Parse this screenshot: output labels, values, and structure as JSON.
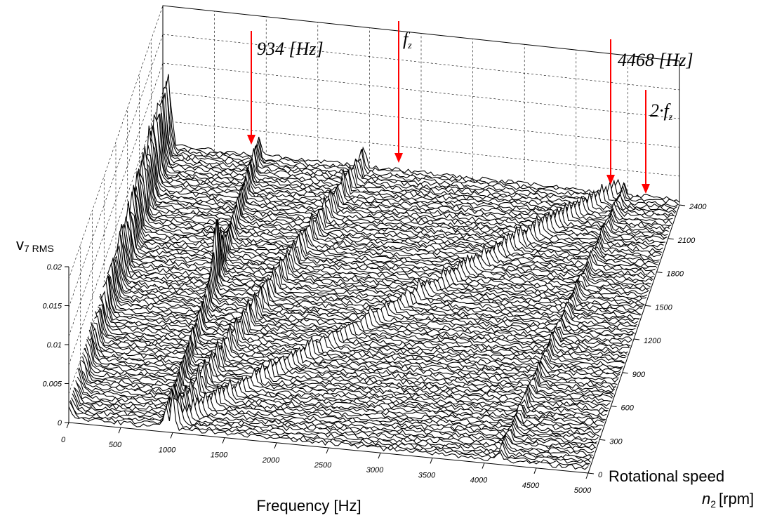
{
  "chart_data": {
    "type": "waterfall-3d",
    "title": "",
    "x_axis": {
      "label": "Frequency [Hz]",
      "range": [
        0,
        5000
      ],
      "ticks": [
        "0",
        "500",
        "1000",
        "1500",
        "2000",
        "2500",
        "3000",
        "3500",
        "4000",
        "4500",
        "5000"
      ]
    },
    "y_axis": {
      "label_line1": "Rotational speed",
      "label_line2_var": "n",
      "label_line2_sub": "2",
      "label_line2_unit": "[rpm]",
      "range": [
        0,
        2400
      ],
      "ticks": [
        "0",
        "300",
        "600",
        "900",
        "1200",
        "1500",
        "1800",
        "2100",
        "2400"
      ]
    },
    "z_axis": {
      "label_main": "v",
      "label_sub": "7 RMS",
      "range": [
        0,
        0.02
      ],
      "ticks": [
        "0",
        "0.005",
        "0.01",
        "0.015",
        "0.02"
      ]
    },
    "grid": true,
    "annotations": [
      {
        "label": "934 [Hz]",
        "frequency": 934
      },
      {
        "label": "f",
        "sub": "z",
        "frequency": 2234
      },
      {
        "label": "4468 [Hz]",
        "frequency": 4468
      },
      {
        "label": "2·f",
        "sub": "z",
        "frequency": 4468
      }
    ],
    "peak_ridges": [
      {
        "name": "low-freq",
        "f_at_0": 0,
        "f_at_2400": 50
      },
      {
        "name": "ridge-a",
        "f_at_0": 934,
        "f_at_2400": 934
      },
      {
        "name": "ridge-b",
        "f_at_0": 1000,
        "f_at_2400": 1950
      },
      {
        "name": "ridge-c",
        "f_at_0": 1000,
        "f_at_2400": 4400
      },
      {
        "name": "ridge-d",
        "f_at_0": 4150,
        "f_at_2400": 4468
      }
    ],
    "colors": {
      "surface_line": "#000000",
      "surface_fill": "#ffffff",
      "arrow": "#ff0000",
      "grid": "#000000"
    }
  }
}
